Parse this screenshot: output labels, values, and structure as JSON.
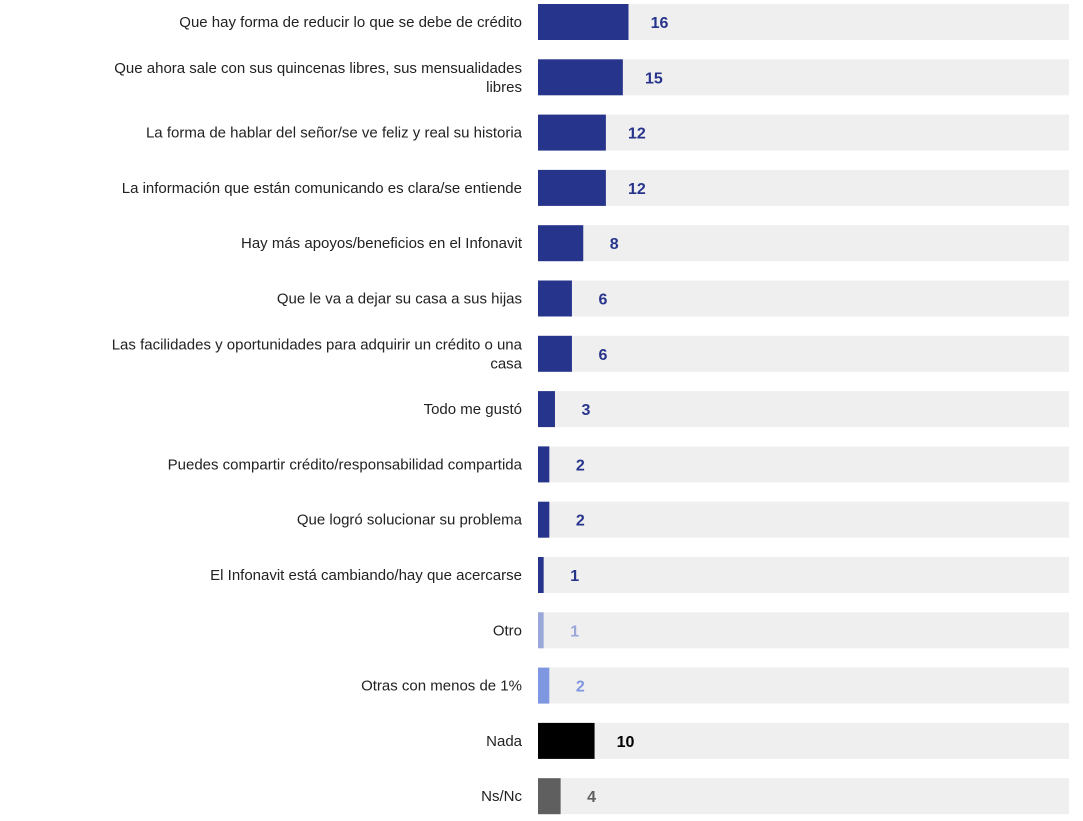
{
  "chart_data": {
    "type": "bar",
    "orientation": "horizontal",
    "grid": false,
    "legend": "none",
    "xlim": [
      0,
      100
    ],
    "categories": [
      [
        "Que hay forma de reducir lo que se debe de crédito"
      ],
      [
        "Que ahora sale con sus quincenas libres, sus mensualidades",
        "libres"
      ],
      [
        "La forma de hablar del señor/se ve feliz y real su historia"
      ],
      [
        "La información que están comunicando es clara/se entiende"
      ],
      [
        "Hay más apoyos/beneficios en el Infonavit"
      ],
      [
        "Que le va a dejar su casa a sus hijas"
      ],
      [
        "Las facilidades y oportunidades para adquirir un crédito o una",
        "casa"
      ],
      [
        "Todo me gustó"
      ],
      [
        "Puedes compartir crédito/responsabilidad compartida"
      ],
      [
        "Que logró solucionar su problema"
      ],
      [
        "El Infonavit está cambiando/hay que acercarse"
      ],
      [
        "Otro"
      ],
      [
        "Otras con menos de 1%"
      ],
      [
        "Nada"
      ],
      [
        "Ns/Nc"
      ]
    ],
    "values": [
      16,
      15,
      12,
      12,
      8,
      6,
      6,
      3,
      2,
      2,
      1,
      1,
      2,
      10,
      4
    ],
    "bar_colors": [
      "#27348b",
      "#27348b",
      "#27348b",
      "#27348b",
      "#27348b",
      "#27348b",
      "#27348b",
      "#27348b",
      "#27348b",
      "#27348b",
      "#27348b",
      "#9aa7d9",
      "#7f96e0",
      "#000000",
      "#5f5f5f"
    ],
    "label_colors": [
      "#27348b",
      "#27348b",
      "#27348b",
      "#27348b",
      "#27348b",
      "#27348b",
      "#27348b",
      "#27348b",
      "#27348b",
      "#27348b",
      "#27348b",
      "#9aa7d9",
      "#7f96e0",
      "#000000",
      "#5f5f5f"
    ],
    "track_color": "#efefef"
  }
}
